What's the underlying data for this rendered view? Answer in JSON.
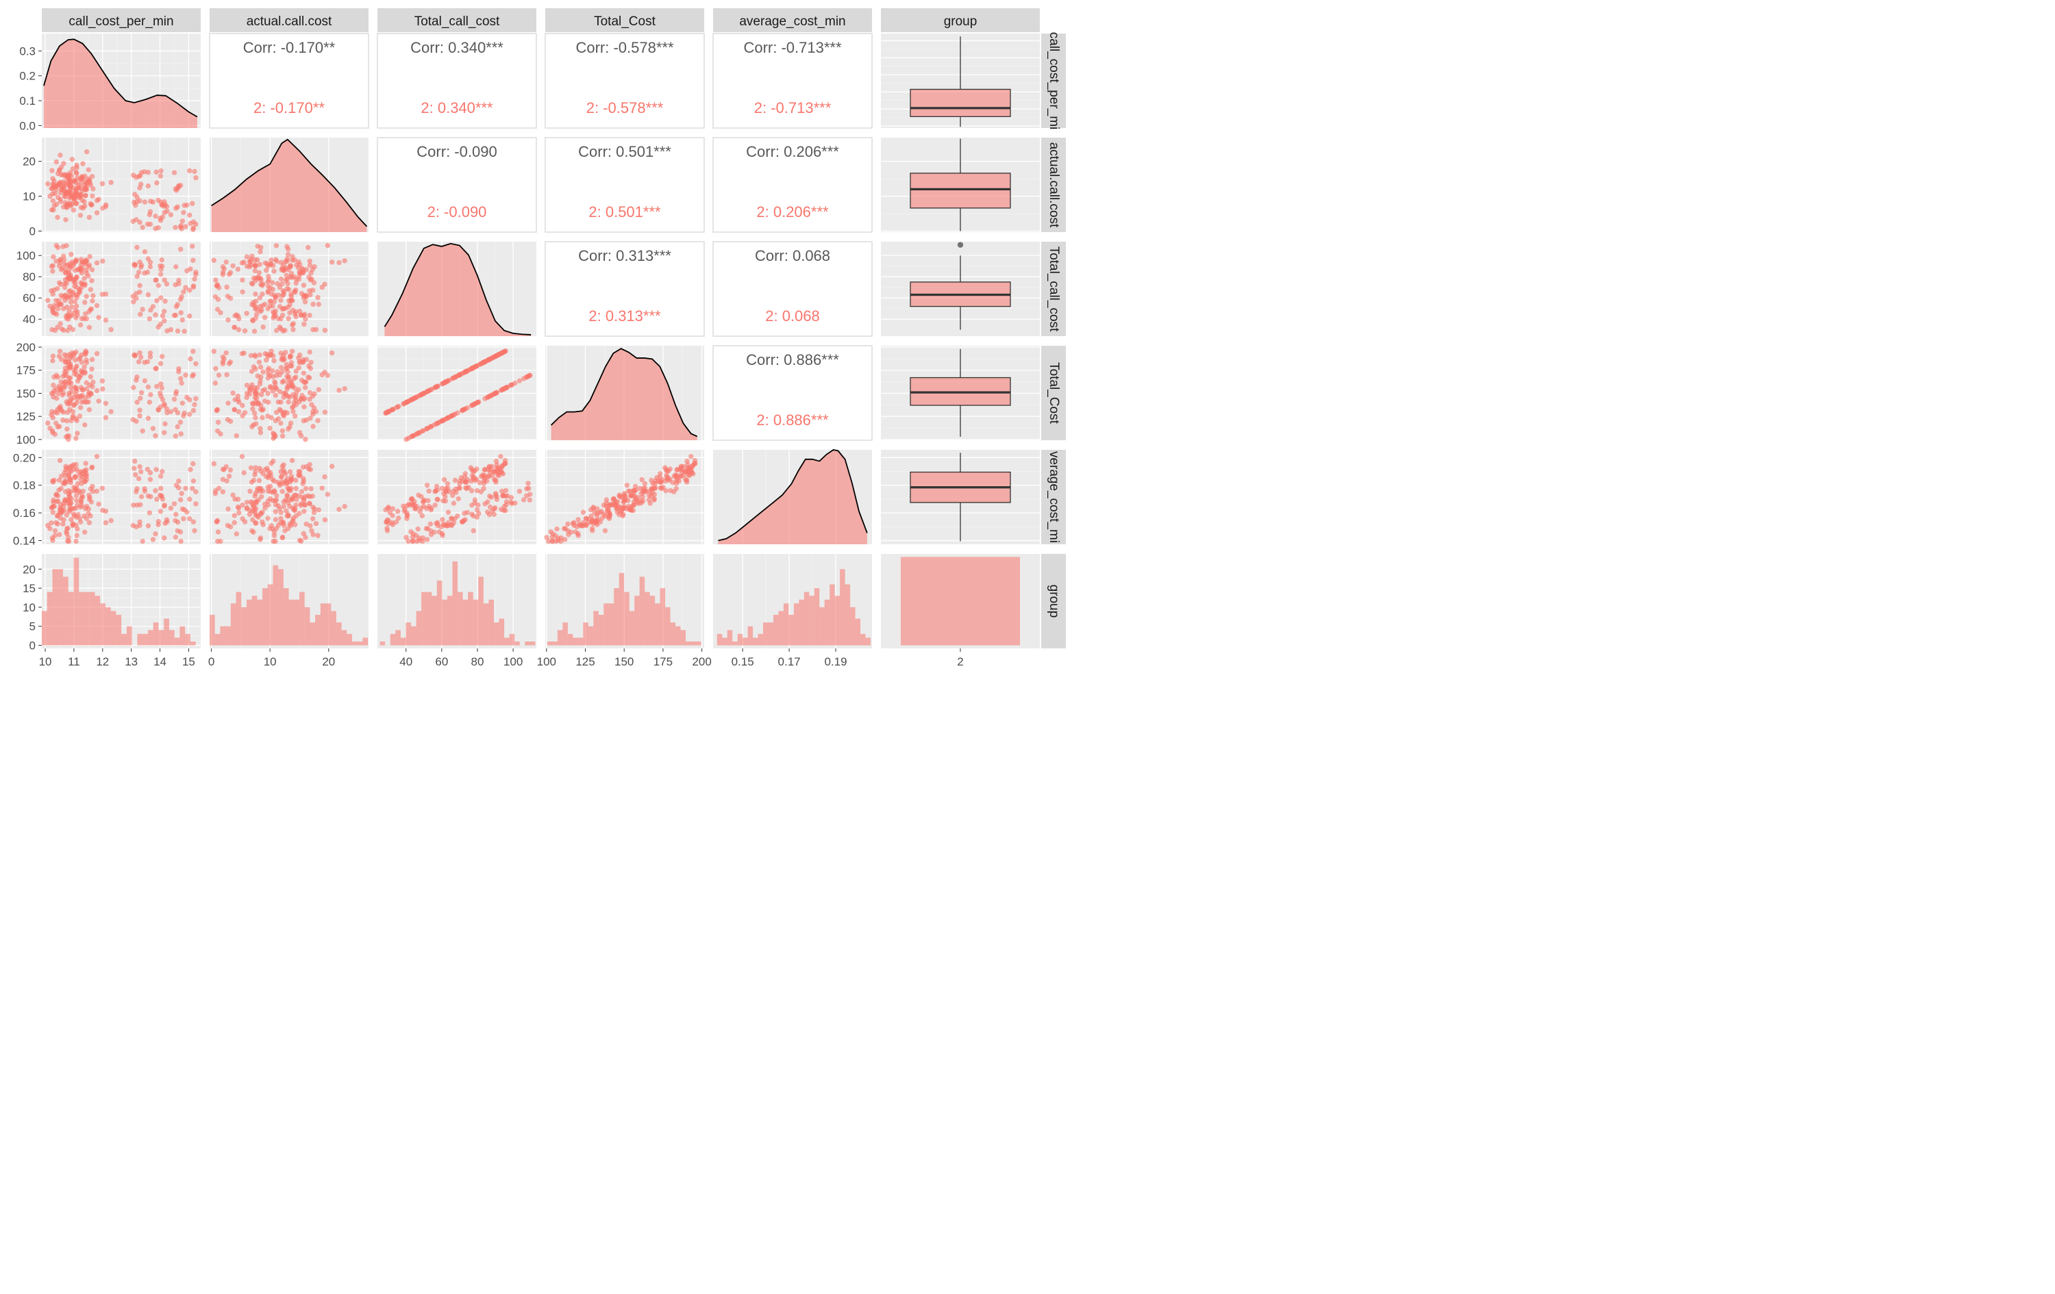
{
  "chart_data": {
    "type": "scatter",
    "subtype": "pairs-matrix",
    "variables": [
      "call_cost_per_min",
      "actual.call.cost",
      "Total_call_cost",
      "Total_Cost",
      "average_cost_min",
      "group"
    ],
    "row_strip_labels": [
      "call_cost_per_mi",
      "actual.call.cost",
      "Total_call_cost",
      "Total_Cost",
      "verage_cost_mi",
      "group"
    ],
    "group_values": [
      "2"
    ],
    "fill_color": "#f8766d",
    "panel_background": "#ebebeb",
    "axes": {
      "call_cost_per_min": {
        "range": [
          9.88,
          15.42
        ],
        "ticks": [
          10,
          11,
          12,
          13,
          14,
          15
        ]
      },
      "actual.call.cost": {
        "range": [
          -0.3,
          26.8
        ],
        "ticks": [
          0,
          10,
          20
        ]
      },
      "Total_call_cost": {
        "range": [
          24.0,
          113.0
        ],
        "ticks": [
          40,
          60,
          80,
          100
        ]
      },
      "Total_Cost": {
        "range": [
          99.2,
          201.5
        ],
        "ticks": [
          100,
          125,
          150,
          175,
          200
        ]
      },
      "average_cost_min": {
        "range": [
          0.1373,
          0.2056
        ],
        "ticks": [
          0.15,
          0.17,
          0.19
        ],
        "y_ticks": [
          0.14,
          0.16,
          0.18,
          0.2
        ]
      },
      "count": {
        "range": [
          -0.8,
          24.0
        ],
        "ticks": [
          0,
          5,
          10,
          15,
          20
        ]
      }
    },
    "density_axis": {
      "range": [
        -0.01,
        0.37
      ],
      "ticks": [
        0.0,
        0.1,
        0.2,
        0.3
      ]
    },
    "correlations": [
      {
        "row": 0,
        "col": 1,
        "overall": "Corr: -0.170**",
        "group": "2: -0.170**"
      },
      {
        "row": 0,
        "col": 2,
        "overall": "Corr: 0.340***",
        "group": "2: 0.340***"
      },
      {
        "row": 0,
        "col": 3,
        "overall": "Corr: -0.578***",
        "group": "2: -0.578***"
      },
      {
        "row": 0,
        "col": 4,
        "overall": "Corr: -0.713***",
        "group": "2: -0.713***"
      },
      {
        "row": 1,
        "col": 2,
        "overall": "Corr: -0.090",
        "group": "2: -0.090"
      },
      {
        "row": 1,
        "col": 3,
        "overall": "Corr: 0.501***",
        "group": "2: 0.501***"
      },
      {
        "row": 1,
        "col": 4,
        "overall": "Corr: 0.206***",
        "group": "2: 0.206***"
      },
      {
        "row": 2,
        "col": 3,
        "overall": "Corr: 0.313***",
        "group": "2: 0.313***"
      },
      {
        "row": 2,
        "col": 4,
        "overall": "Corr: 0.068",
        "group": "2: 0.068"
      },
      {
        "row": 3,
        "col": 4,
        "overall": "Corr: 0.886***",
        "group": "2: 0.886***"
      }
    ],
    "density_curves": {
      "call_cost_per_min": {
        "x": [
          9.95,
          10.2,
          10.5,
          10.8,
          11.0,
          11.3,
          11.6,
          12.0,
          12.4,
          12.8,
          13.1,
          13.5,
          13.9,
          14.2,
          14.6,
          15.0,
          15.3
        ],
        "y": [
          0.16,
          0.26,
          0.32,
          0.345,
          0.347,
          0.33,
          0.29,
          0.22,
          0.15,
          0.1,
          0.092,
          0.105,
          0.122,
          0.12,
          0.09,
          0.055,
          0.035
        ]
      },
      "actual.call.cost": {
        "x": [
          0.0,
          2.0,
          4.0,
          6.0,
          8.0,
          10.0,
          12.0,
          13.0,
          15.0,
          17.0,
          19.0,
          21.0,
          23.0,
          25.0,
          26.5
        ],
        "y": [
          0.28,
          0.36,
          0.45,
          0.56,
          0.65,
          0.72,
          0.94,
          0.98,
          0.86,
          0.72,
          0.6,
          0.47,
          0.32,
          0.16,
          0.06
        ]
      },
      "Total_call_cost": {
        "x": [
          28.0,
          32.0,
          38.0,
          44.0,
          50.0,
          55.0,
          60.0,
          65.0,
          70.0,
          75.0,
          80.0,
          85.0,
          90.0,
          95.0,
          100.0,
          105.0,
          110.0
        ],
        "y": [
          0.1,
          0.22,
          0.45,
          0.72,
          0.93,
          0.97,
          0.95,
          0.98,
          0.96,
          0.86,
          0.64,
          0.38,
          0.16,
          0.06,
          0.03,
          0.02,
          0.015
        ]
      },
      "Total_Cost": {
        "x": [
          103.0,
          108.0,
          113.0,
          118.0,
          123.0,
          128.0,
          133.0,
          138.0,
          143.0,
          148.0,
          153.0,
          158.0,
          163.0,
          168.0,
          173.0,
          178.0,
          183.0,
          188.0,
          193.0,
          197.0
        ],
        "y": [
          0.16,
          0.24,
          0.3,
          0.3,
          0.31,
          0.42,
          0.6,
          0.78,
          0.92,
          0.97,
          0.93,
          0.87,
          0.87,
          0.86,
          0.78,
          0.6,
          0.37,
          0.18,
          0.07,
          0.04
        ]
      },
      "average_cost_min": {
        "x": [
          0.1395,
          0.143,
          0.147,
          0.151,
          0.155,
          0.159,
          0.163,
          0.167,
          0.171,
          0.174,
          0.177,
          0.18,
          0.183,
          0.186,
          0.189,
          0.191,
          0.194,
          0.197,
          0.2,
          0.2035
        ],
        "y": [
          0.04,
          0.06,
          0.12,
          0.2,
          0.28,
          0.36,
          0.44,
          0.52,
          0.64,
          0.78,
          0.9,
          0.9,
          0.88,
          0.95,
          1.0,
          0.99,
          0.9,
          0.65,
          0.35,
          0.12
        ]
      }
    },
    "histograms": {
      "call_cost_per_min": {
        "bin_start": 9.88,
        "bin_width": 0.185,
        "counts": [
          9,
          14,
          20,
          20,
          18,
          14,
          23,
          14,
          14,
          14,
          13,
          11,
          10,
          9,
          8,
          3,
          5,
          0,
          3,
          3,
          4,
          6,
          4,
          7,
          4,
          2,
          5,
          3,
          1,
          0
        ]
      },
      "actual.call.cost": {
        "bin_start": -0.3,
        "bin_width": 0.9,
        "counts": [
          8,
          3,
          5,
          5,
          11,
          14,
          10,
          12,
          13,
          12,
          15,
          16,
          21,
          20,
          15,
          12,
          12,
          14,
          10,
          6,
          8,
          11,
          11,
          9,
          6,
          4,
          3,
          1,
          1,
          2
        ]
      },
      "Total_call_cost": {
        "bin_start": 25.4,
        "bin_width": 2.9,
        "counts": [
          1,
          0,
          3,
          4,
          2,
          6,
          5,
          9,
          14,
          14,
          13,
          17,
          12,
          13,
          22,
          14,
          12,
          14,
          12,
          18,
          11,
          12,
          6,
          7,
          2,
          3,
          1,
          0,
          1,
          1
        ]
      },
      "Total_Cost": {
        "bin_start": 100.5,
        "bin_width": 3.3,
        "counts": [
          1,
          1,
          4,
          6,
          3,
          2,
          2,
          6,
          5,
          9,
          8,
          11,
          11,
          15,
          19,
          14,
          9,
          13,
          18,
          14,
          13,
          11,
          15,
          10,
          6,
          5,
          4,
          1,
          1,
          1
        ]
      },
      "average_cost_min": {
        "bin_start": 0.139,
        "bin_width": 0.0022,
        "counts": [
          3,
          2,
          4,
          1,
          3,
          2,
          5,
          2,
          3,
          6,
          6,
          8,
          9,
          11,
          8,
          11,
          12,
          14,
          13,
          15,
          10,
          12,
          16,
          13,
          20,
          16,
          10,
          7,
          3,
          2
        ]
      },
      "group": {
        "category": "2",
        "count": 256
      }
    },
    "boxplots": {
      "call_cost_per_min": {
        "min": 9.95,
        "q1": 10.55,
        "median": 11.05,
        "q3": 12.15,
        "max": 15.25,
        "outliers": []
      },
      "actual.call.cost": {
        "min": 0.0,
        "q1": 6.6,
        "median": 12.0,
        "q3": 16.6,
        "max": 26.5,
        "outliers": []
      },
      "Total_call_cost": {
        "min": 30.0,
        "q1": 52.0,
        "median": 63.0,
        "q3": 75.0,
        "max": 100.0,
        "outliers": [
          110.0
        ]
      },
      "Total_Cost": {
        "min": 103.0,
        "q1": 137.0,
        "median": 151.0,
        "q3": 167.0,
        "max": 198.0,
        "outliers": []
      },
      "average_cost_min": {
        "min": 0.1395,
        "q1": 0.1675,
        "median": 0.1785,
        "q3": 0.1895,
        "max": 0.2035,
        "outliers": []
      }
    },
    "scatter": {
      "n_points": 256,
      "summary": {
        "call_cost_per_min|actual.call.cost": {
          "cluster_low": "10-12.8 x, 0-26 y",
          "cluster_high": "13-15.3 x, 0-18 y"
        },
        "Total_Cost|Total_call_cost": "two parallel lines: y = x + 60 and y = x + 100"
      }
    }
  }
}
